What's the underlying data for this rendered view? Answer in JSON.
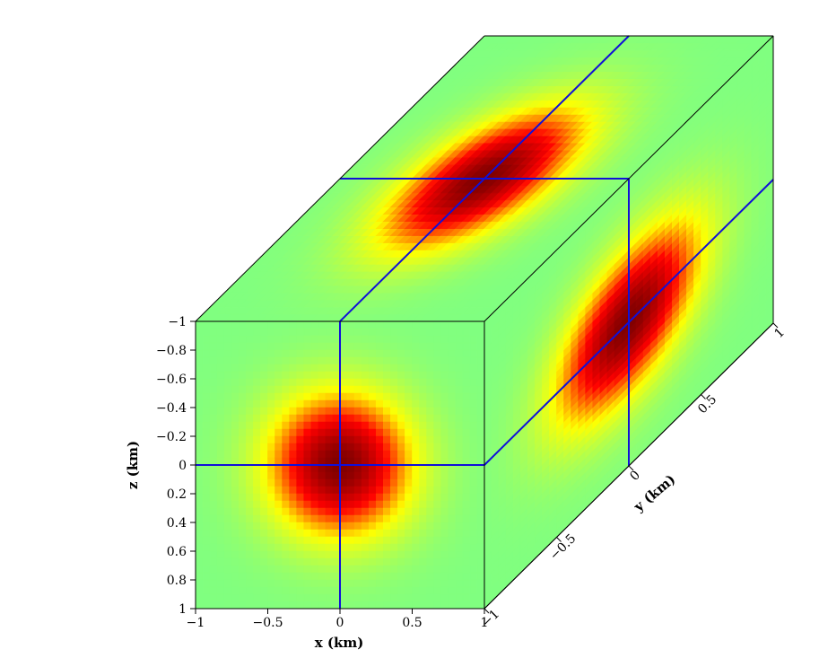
{
  "chart_data": {
    "type": "heatmap",
    "plot_kind": "3d-cube-slices",
    "colormap": [
      "#80ff80",
      "#ffff00",
      "#ff0000",
      "#800000"
    ],
    "colors": {
      "grid_line": "#1010d8",
      "edge": "#000000"
    },
    "xlabel": "x (km)",
    "ylabel": "y (km)",
    "zlabel": "z (km)",
    "xlim": [
      -1,
      1
    ],
    "ylim": [
      -1,
      1
    ],
    "zlim": [
      -1,
      1
    ],
    "z_axis_inverted": true,
    "x_ticks": [
      "−1",
      "−0.5",
      "0",
      "0.5",
      "1"
    ],
    "y_ticks": [
      "−1",
      "−0.5",
      "0",
      "0.5",
      "1"
    ],
    "z_ticks": [
      "−1",
      "−0.8",
      "−0.6",
      "−0.4",
      "−0.2",
      "0",
      "0.2",
      "0.4",
      "0.6",
      "0.8",
      "1"
    ],
    "x_tick_values": [
      -1,
      -0.5,
      0,
      0.5,
      1
    ],
    "y_tick_values": [
      -1,
      -0.5,
      0,
      0.5,
      1
    ],
    "z_tick_values": [
      -1,
      -0.8,
      -0.6,
      -0.4,
      -0.2,
      0,
      0.2,
      0.4,
      0.6,
      0.8,
      1
    ],
    "slice_positions": {
      "x": 0,
      "y": 0,
      "z": 0
    },
    "field": "gaussian blob centered at (0,0,0), peak value 1 on the slices",
    "grid_cells": 40
  }
}
